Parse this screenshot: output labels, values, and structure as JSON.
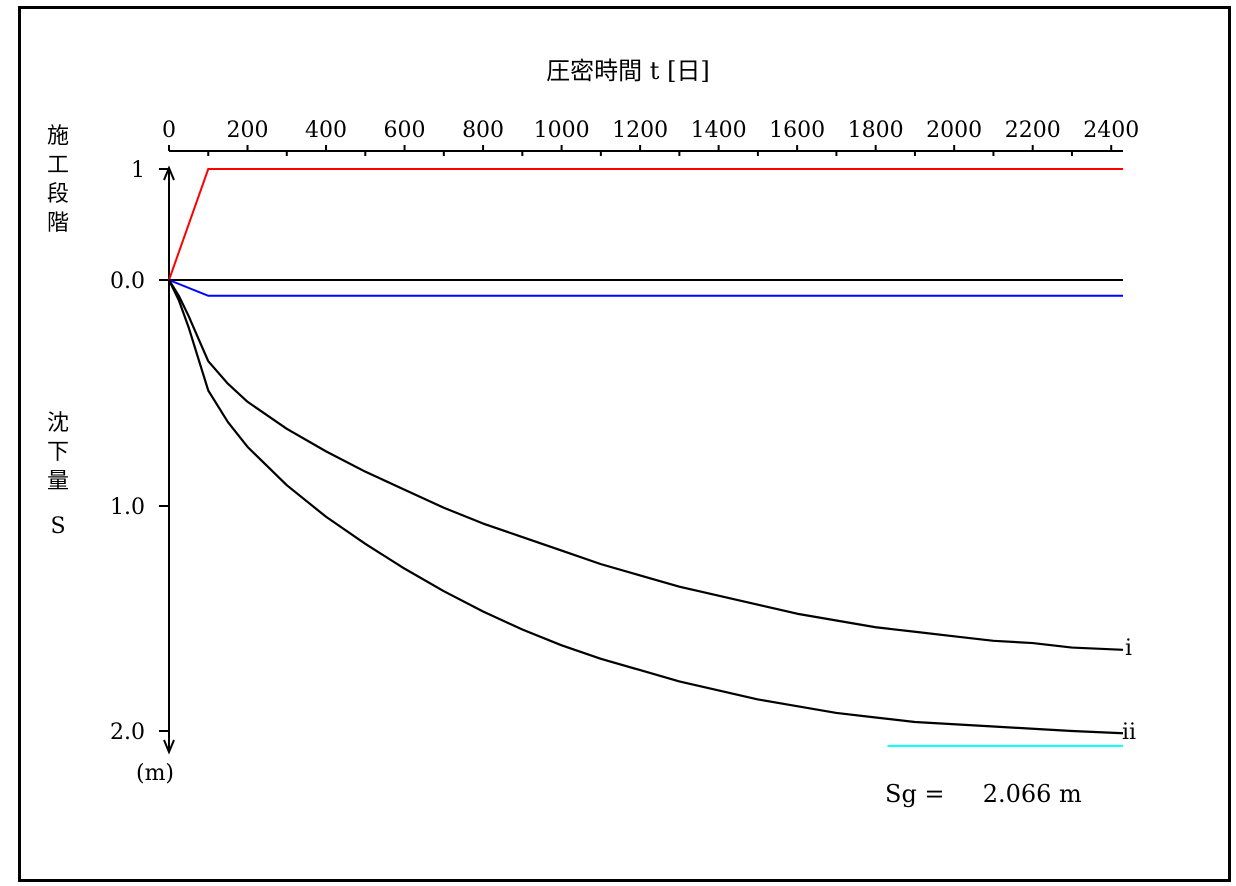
{
  "chart_data": {
    "type": "line",
    "title": "圧密時間 t [日]",
    "x_axis": {
      "label": "圧密時間 t [日]",
      "ticks": [
        0,
        200,
        400,
        600,
        800,
        1000,
        1200,
        1400,
        1600,
        1800,
        2000,
        2200,
        2400
      ],
      "range": [
        0,
        2430
      ],
      "minor_step": 100
    },
    "stage_axis": {
      "label_chars": [
        "施",
        "工",
        "段",
        "階"
      ],
      "tick_label": "1",
      "range": [
        0,
        1
      ]
    },
    "settlement_axis": {
      "label_chars": [
        "沈",
        "下",
        "量",
        "S"
      ],
      "tick_labels": [
        "0.0",
        "1.0",
        "2.0"
      ],
      "unit": "(m)",
      "range": [
        0,
        2.0
      ]
    },
    "construction_stage": {
      "color": "#ff0000",
      "points": [
        [
          0,
          0
        ],
        [
          100,
          1
        ],
        [
          2430,
          1
        ]
      ]
    },
    "zero_line": {
      "color": "#000000",
      "y": 0.0
    },
    "fill_line": {
      "color": "#0000ff",
      "points": [
        [
          0,
          0
        ],
        [
          100,
          0.07
        ],
        [
          2430,
          0.07
        ]
      ]
    },
    "series": [
      {
        "name": "i",
        "color": "#000000",
        "points": [
          [
            0,
            0
          ],
          [
            25,
            0.07
          ],
          [
            50,
            0.16
          ],
          [
            75,
            0.26
          ],
          [
            100,
            0.36
          ],
          [
            150,
            0.46
          ],
          [
            200,
            0.54
          ],
          [
            300,
            0.66
          ],
          [
            400,
            0.76
          ],
          [
            500,
            0.85
          ],
          [
            600,
            0.93
          ],
          [
            700,
            1.01
          ],
          [
            800,
            1.08
          ],
          [
            900,
            1.14
          ],
          [
            1000,
            1.2
          ],
          [
            1100,
            1.26
          ],
          [
            1200,
            1.31
          ],
          [
            1300,
            1.36
          ],
          [
            1400,
            1.4
          ],
          [
            1500,
            1.44
          ],
          [
            1600,
            1.48
          ],
          [
            1700,
            1.51
          ],
          [
            1800,
            1.54
          ],
          [
            1900,
            1.56
          ],
          [
            2000,
            1.58
          ],
          [
            2100,
            1.6
          ],
          [
            2200,
            1.61
          ],
          [
            2300,
            1.63
          ],
          [
            2430,
            1.64
          ]
        ]
      },
      {
        "name": "ii",
        "color": "#000000",
        "points": [
          [
            0,
            0
          ],
          [
            25,
            0.09
          ],
          [
            50,
            0.21
          ],
          [
            75,
            0.35
          ],
          [
            100,
            0.49
          ],
          [
            150,
            0.63
          ],
          [
            200,
            0.74
          ],
          [
            300,
            0.91
          ],
          [
            400,
            1.05
          ],
          [
            500,
            1.17
          ],
          [
            600,
            1.28
          ],
          [
            700,
            1.38
          ],
          [
            800,
            1.47
          ],
          [
            900,
            1.55
          ],
          [
            1000,
            1.62
          ],
          [
            1100,
            1.68
          ],
          [
            1200,
            1.73
          ],
          [
            1300,
            1.78
          ],
          [
            1400,
            1.82
          ],
          [
            1500,
            1.86
          ],
          [
            1600,
            1.89
          ],
          [
            1700,
            1.92
          ],
          [
            1800,
            1.94
          ],
          [
            1900,
            1.96
          ],
          [
            2000,
            1.97
          ],
          [
            2100,
            1.98
          ],
          [
            2200,
            1.99
          ],
          [
            2300,
            2.0
          ],
          [
            2430,
            2.01
          ]
        ]
      }
    ],
    "sg_line": {
      "color": "#00ffff",
      "value": 2.066,
      "x_range": [
        1830,
        2430
      ]
    },
    "sg_text": "Sg =     2.066 m"
  }
}
